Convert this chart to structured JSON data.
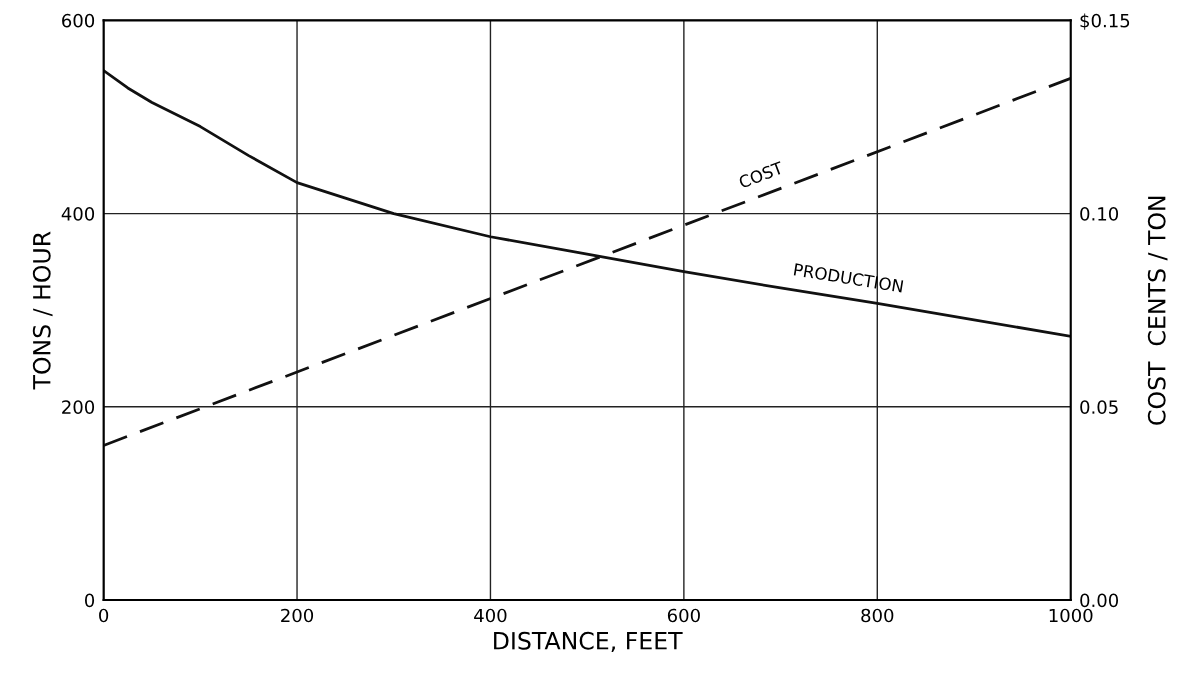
{
  "chart_data": {
    "type": "line",
    "xlabel": "DISTANCE, FEET",
    "ylabel": "TONS / HOUR",
    "y2label": "COST  CENTS / TON",
    "xlim": [
      0,
      1000
    ],
    "xticks": [
      0,
      200,
      400,
      600,
      800,
      1000
    ],
    "ylim": [
      0,
      600
    ],
    "yticks": [
      0,
      200,
      400,
      600
    ],
    "y2lim": [
      0,
      0.15
    ],
    "y2ticks": [
      {
        "value": 0,
        "label": "0.00"
      },
      {
        "value": 0.05,
        "label": "0.05"
      },
      {
        "value": 0.1,
        "label": "0.10"
      },
      {
        "value": 0.15,
        "label": "$0.15"
      }
    ],
    "grid": true,
    "legend": false,
    "marker": "none",
    "series": [
      {
        "name": "PRODUCTION",
        "color": "#111111",
        "line_style": "solid",
        "x": [
          0,
          25,
          50,
          100,
          150,
          200,
          300,
          400,
          500,
          600,
          700,
          800,
          900,
          1000
        ],
        "values": [
          548,
          530,
          515,
          490,
          460,
          432,
          400,
          376,
          358,
          340,
          323,
          307,
          290,
          273
        ]
      },
      {
        "name": "COST",
        "color": "#111111",
        "line_style": "dashed",
        "axis": "y2",
        "x": [
          0,
          1000
        ],
        "values": [
          0.04,
          0.135
        ]
      }
    ]
  }
}
